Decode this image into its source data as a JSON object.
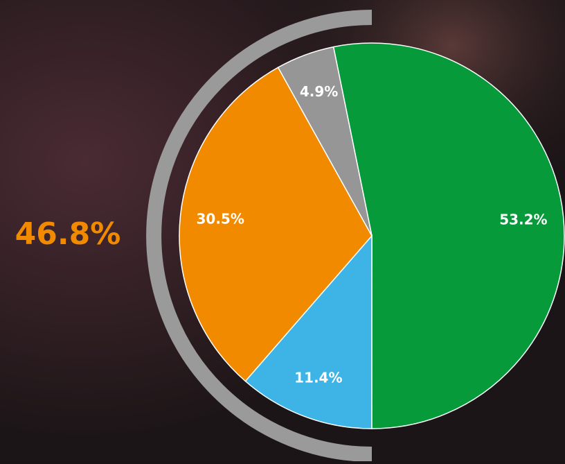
{
  "chart_data": {
    "type": "pie",
    "categories": [
      null,
      null,
      null,
      null
    ],
    "values": [
      53.2,
      11.4,
      30.5,
      4.9
    ],
    "value_labels": [
      "53.2%",
      "11.4%",
      "30.5%",
      "4.9%"
    ],
    "colors": [
      "#069a3a",
      "#3db3e6",
      "#f28a00",
      "#969696"
    ],
    "annotation": "46.8%"
  }
}
